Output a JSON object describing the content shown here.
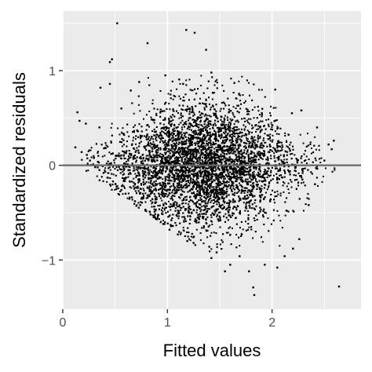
{
  "chart_data": {
    "type": "scatter",
    "title": "",
    "xlabel": "Fitted values",
    "ylabel": "Standardized residuals",
    "xlim": [
      0.0,
      2.85
    ],
    "ylim": [
      -1.52,
      1.63
    ],
    "x_ticks": [
      0,
      1,
      2
    ],
    "x_tick_labels": [
      "0",
      "1",
      "2"
    ],
    "y_ticks": [
      -1,
      0,
      1
    ],
    "y_tick_labels": [
      "−1",
      "0",
      "1"
    ],
    "grid": true,
    "reference_line": {
      "y": 0,
      "color": "#666666"
    },
    "colors": {
      "panel": "#ebebeb",
      "grid": "#ffffff",
      "points": "#000000"
    },
    "series": [
      {
        "points": [
          [
            0.52,
            1.5
          ],
          [
            0.81,
            1.29
          ],
          [
            1.18,
            1.43
          ],
          [
            1.26,
            1.4
          ],
          [
            1.37,
            1.22
          ],
          [
            0.45,
            1.09
          ],
          [
            0.47,
            1.12
          ],
          [
            0.73,
            0.88
          ],
          [
            0.98,
            0.95
          ],
          [
            1.42,
            0.98
          ],
          [
            0.36,
            0.82
          ],
          [
            0.45,
            0.86
          ],
          [
            0.65,
            0.79
          ],
          [
            1.15,
            0.86
          ],
          [
            1.64,
            0.87
          ],
          [
            0.14,
            0.56
          ],
          [
            0.16,
            0.47
          ],
          [
            0.22,
            0.44
          ],
          [
            0.35,
            0.4
          ],
          [
            0.56,
            0.6
          ],
          [
            2.03,
            0.8
          ],
          [
            2.19,
            0.55
          ],
          [
            2.28,
            0.58
          ],
          [
            2.43,
            0.4
          ],
          [
            2.54,
            0.22
          ],
          [
            2.57,
            0.17
          ],
          [
            2.59,
            0.26
          ],
          [
            2.5,
            0.05
          ],
          [
            2.29,
            -0.15
          ],
          [
            2.41,
            -0.2
          ],
          [
            0.12,
            0.19
          ],
          [
            0.18,
            0.14
          ],
          [
            0.23,
            0.11
          ],
          [
            0.26,
            0.05
          ],
          [
            0.29,
            0.01
          ],
          [
            0.31,
            -0.02
          ],
          [
            0.35,
            -0.05
          ],
          [
            0.39,
            -0.08
          ],
          [
            0.43,
            -0.13
          ],
          [
            0.48,
            -0.17
          ],
          [
            0.52,
            -0.22
          ],
          [
            0.56,
            -0.26
          ],
          [
            0.6,
            -0.3
          ],
          [
            0.64,
            -0.34
          ],
          [
            0.69,
            -0.38
          ],
          [
            0.74,
            -0.42
          ],
          [
            0.79,
            -0.47
          ],
          [
            0.84,
            -0.52
          ],
          [
            0.9,
            -0.57
          ],
          [
            0.96,
            -0.62
          ],
          [
            1.02,
            -0.68
          ],
          [
            1.1,
            -0.73
          ],
          [
            1.19,
            -0.8
          ],
          [
            1.25,
            -0.82
          ],
          [
            1.42,
            -0.98
          ],
          [
            1.6,
            -1.05
          ],
          [
            1.78,
            -1.12
          ],
          [
            1.93,
            -1.05
          ],
          [
            2.05,
            -1.08
          ],
          [
            2.12,
            -0.96
          ],
          [
            2.2,
            -0.88
          ],
          [
            2.26,
            -0.78
          ],
          [
            2.35,
            -0.42
          ],
          [
            1.47,
            -0.92
          ],
          [
            1.69,
            -0.96
          ],
          [
            1.82,
            -1.29
          ],
          [
            1.83,
            -1.37
          ],
          [
            2.64,
            -1.28
          ],
          [
            1.4,
            -0.86
          ],
          [
            1.55,
            -1.12
          ]
        ]
      }
    ]
  }
}
